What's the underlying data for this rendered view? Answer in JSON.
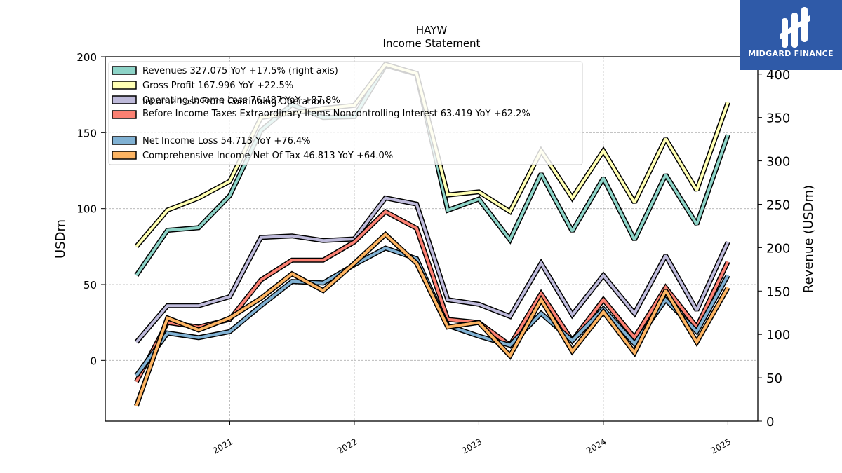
{
  "chart_data": {
    "type": "line",
    "title": "HAYW",
    "subtitle": "Income Statement",
    "ylabel": "USDm",
    "y2label": "Revenue (USDm)",
    "ylim": [
      -40,
      200
    ],
    "y2lim": [
      0,
      420
    ],
    "xlim": [
      2020.0,
      2025.24
    ],
    "x_ticks": [
      "2021",
      "2022",
      "2023",
      "2024",
      "2025"
    ],
    "y_ticks": [
      0,
      50,
      100,
      150,
      200
    ],
    "y2_ticks": [
      0,
      50,
      100,
      150,
      200,
      250,
      300,
      350,
      400
    ],
    "grid": true,
    "legend_position": "top-left",
    "x": [
      "2020-04-01",
      "2020-07-01",
      "2020-10-01",
      "2021-01-01",
      "2021-04-01",
      "2021-07-01",
      "2021-10-01",
      "2022-01-01",
      "2022-04-01",
      "2022-07-01",
      "2022-10-01",
      "2023-01-01",
      "2023-04-01",
      "2023-07-01",
      "2023-10-01",
      "2024-01-01",
      "2024-04-01",
      "2024-07-01",
      "2024-10-01",
      "2025-01-01"
    ],
    "series": [
      {
        "name": "Revenues  327.075 YoY +17.5% (right axis)",
        "axis": "right",
        "color": "#8dd3c7",
        "values": [
          168,
          220,
          223,
          260,
          335,
          365,
          350,
          351,
          410,
          400,
          243,
          256,
          209,
          285,
          219,
          280,
          209,
          284,
          227,
          330
        ]
      },
      {
        "name": "Gross Profit  167.996 YoY +22.5%",
        "axis": "left",
        "color": "#ffffb3",
        "values": [
          75,
          99,
          107,
          118,
          160,
          163,
          166,
          168,
          195,
          189,
          109,
          111,
          98,
          138,
          107,
          138,
          104,
          146,
          112,
          170
        ]
      },
      {
        "name": "Operating Income Loss  76.487 YoY +37.8%",
        "axis": "left",
        "color": "#bebada",
        "values": [
          12,
          36,
          36,
          42,
          81,
          82,
          79,
          80,
          107,
          103,
          40,
          37,
          29,
          64,
          30,
          56,
          31,
          69,
          33,
          78
        ]
      },
      {
        "name": "Income Loss From Continuing Operations Before Income Taxes Extraordinary Items Noncontrolling Interest  63.419 YoY +62.2%",
        "axis": "left",
        "color": "#fb8072",
        "values": [
          -14,
          25,
          22,
          27,
          53,
          66,
          66,
          78,
          98,
          87,
          27,
          25,
          10,
          44,
          13,
          40,
          15,
          48,
          22,
          65
        ]
      },
      {
        "name": "Net Income Loss  54.713 YoY +76.4%",
        "axis": "left",
        "color": "#80b1d3",
        "values": [
          -10,
          18,
          15,
          19,
          36,
          52,
          51,
          63,
          74,
          67,
          23,
          16,
          10,
          31,
          13,
          34,
          11,
          40,
          19,
          56
        ]
      },
      {
        "name": "Comprehensive Income Net Of Tax  46.813 YoY +64.0%",
        "axis": "left",
        "color": "#fdb462",
        "values": [
          -30,
          28,
          20,
          28,
          41,
          57,
          46,
          64,
          83,
          64,
          22,
          25,
          3,
          40,
          6,
          32,
          5,
          46,
          12,
          48
        ]
      }
    ]
  },
  "brand": {
    "name": "MIDGARD FINANCE",
    "color": "#2f5aa8",
    "icon": "midgard-logo-icon"
  }
}
